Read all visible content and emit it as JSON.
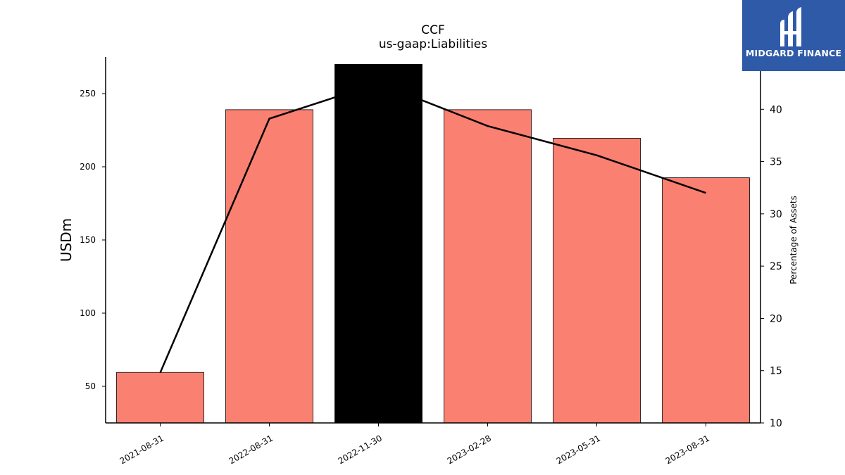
{
  "chart_data": {
    "type": "bar",
    "title": "CCF",
    "subtitle": "us-gaap:Liabilities",
    "ylabel": "USDm",
    "y2label": "Percentage of Assets",
    "categories": [
      "2021-08-31",
      "2022-08-31",
      "2022-11-30",
      "2023-02-28",
      "2023-05-31",
      "2023-08-31"
    ],
    "ylim": [
      25,
      275
    ],
    "yticks": [
      50,
      100,
      150,
      200,
      250
    ],
    "y2lim": [
      10,
      45
    ],
    "y2ticks": [
      10,
      15,
      20,
      25,
      30,
      35,
      40
    ],
    "series": [
      {
        "type": "bar",
        "values": [
          59.5,
          239,
          270,
          239,
          219.5,
          192.5
        ]
      },
      {
        "type": "line",
        "axis": "right",
        "values": [
          14.8,
          39.1,
          42.5,
          38.4,
          35.6,
          32.0
        ]
      }
    ],
    "highlight_index": 2,
    "colors": {
      "bar": "#fa8072",
      "highlight": "#000000",
      "line": "#000000"
    },
    "grid": false
  },
  "logo": {
    "text": "MIDGARD FINANCE",
    "bg": "#2f5aa8"
  }
}
